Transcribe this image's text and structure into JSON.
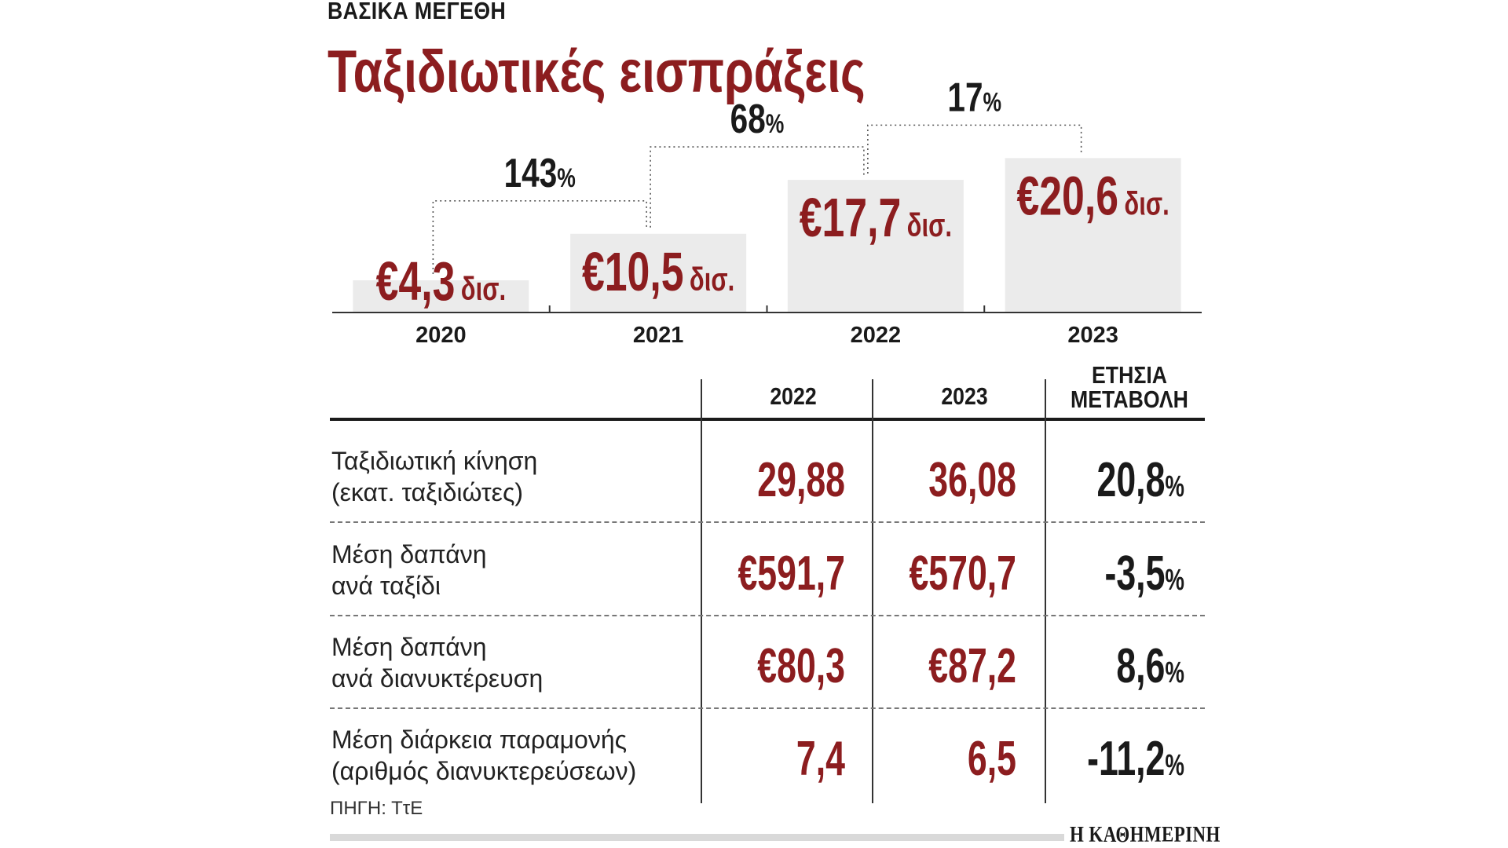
{
  "header": {
    "kicker": "ΒΑΣΙΚΑ ΜΕΓΕΘΗ",
    "title": "Ταξιδιωτικές εισπράξεις"
  },
  "colors": {
    "accent": "#8c1d1f",
    "bar": "#ebebeb",
    "text": "#1a1a1a"
  },
  "chart_data": {
    "type": "bar",
    "title": "Ταξιδιωτικές εισπράξεις",
    "categories": [
      "2020",
      "2021",
      "2022",
      "2023"
    ],
    "values": [
      4.3,
      10.5,
      17.7,
      20.6
    ],
    "value_labels": [
      "€4,3",
      "€10,5",
      "€17,7",
      "€20,6"
    ],
    "unit_label": "δισ.",
    "ylim": [
      0,
      22
    ],
    "xlabel": "",
    "ylabel": "",
    "annotations": [
      {
        "from": "2020",
        "to": "2021",
        "label": "143",
        "suffix": "%"
      },
      {
        "from": "2021",
        "to": "2022",
        "label": "68",
        "suffix": "%"
      },
      {
        "from": "2022",
        "to": "2023",
        "label": "17",
        "suffix": "%"
      }
    ]
  },
  "table": {
    "headers": {
      "col_2022": "2022",
      "col_2023": "2023",
      "change_line1": "ΕΤΗΣΙΑ",
      "change_line2": "ΜΕΤΑΒΟΛΗ"
    },
    "rows": [
      {
        "label": "Ταξιδιωτική κίνηση\n(εκατ. ταξιδιώτες)",
        "v2022": "29,88",
        "v2023": "36,08",
        "change": "20,8",
        "change_suffix": "%"
      },
      {
        "label": "Μέση δαπάνη\nανά ταξίδι",
        "v2022": "€591,7",
        "v2023": "€570,7",
        "change": "-3,5",
        "change_suffix": "%"
      },
      {
        "label": "Μέση δαπάνη\nανά διανυκτέρευση",
        "v2022": "€80,3",
        "v2023": "€87,2",
        "change": "8,6",
        "change_suffix": "%"
      },
      {
        "label": "Μέση διάρκεια παραμονής\n(αριθμός διανυκτερεύσεων)",
        "v2022": "7,4",
        "v2023": "6,5",
        "change": "-11,2",
        "change_suffix": "%"
      }
    ]
  },
  "footer": {
    "source": "ΠΗΓΗ: ΤτΕ",
    "brand": "Η ΚΑΘΗΜΕΡΙΝΗ"
  }
}
